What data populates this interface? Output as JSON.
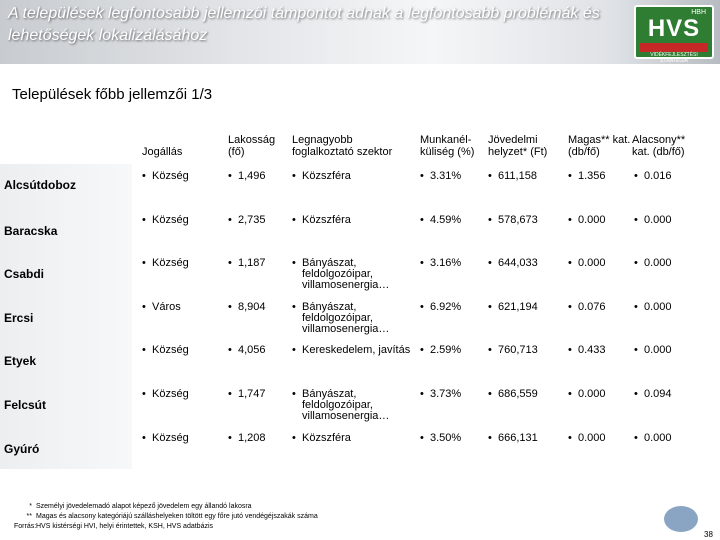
{
  "header": {
    "title": "A települések legfontosabb jellemzői támpontot adnak a legfontosabb problémák és lehetőségek lokalizálásához"
  },
  "logo": {
    "top": "HBH",
    "main": "HVS",
    "sub": "VIDÉKFEJLESZTÉSI STRATÉGIA"
  },
  "subtitle": "Települések főbb jellemzői 1/3",
  "columns": {
    "jogallas": "Jogállás",
    "lakossag": "Lakosság (fő)",
    "legnagyobb": "Legnagyobb foglalkoztató szektor",
    "munkanelkuliseg": "Munkanél-küliség (%)",
    "jovedelmi": "Jövedelmi helyzet* (Ft)",
    "magas": "Magas** kat. (db/fő)",
    "alacsony": "Alacsony** kat. (db/fő)"
  },
  "rows": [
    {
      "name": "Alcsútdoboz",
      "jogallas": "Község",
      "lakossag": "1,496",
      "szektor": "Közszféra",
      "munka": "3.31%",
      "jov": "611,158",
      "magas": "1.356",
      "alacsony": "0.016"
    },
    {
      "name": "Baracska",
      "jogallas": "Község",
      "lakossag": "2,735",
      "szektor": "Közszféra",
      "munka": "4.59%",
      "jov": "578,673",
      "magas": "0.000",
      "alacsony": "0.000"
    },
    {
      "name": "Csabdi",
      "jogallas": "Község",
      "lakossag": "1,187",
      "szektor": "Bányászat, feldolgozóipar, villamosenergia…",
      "munka": "3.16%",
      "jov": "644,033",
      "magas": "0.000",
      "alacsony": "0.000"
    },
    {
      "name": "Ercsi",
      "jogallas": "Város",
      "lakossag": "8,904",
      "szektor": "Bányászat, feldolgozóipar, villamosenergia…",
      "munka": "6.92%",
      "jov": "621,194",
      "magas": "0.076",
      "alacsony": "0.000"
    },
    {
      "name": "Etyek",
      "jogallas": "Község",
      "lakossag": "4,056",
      "szektor": "Kereskedelem, javítás",
      "munka": "2.59%",
      "jov": "760,713",
      "magas": "0.433",
      "alacsony": "0.000"
    },
    {
      "name": "Felcsút",
      "jogallas": "Község",
      "lakossag": "1,747",
      "szektor": "Bányászat, feldolgozóipar, villamosenergia…",
      "munka": "3.73%",
      "jov": "686,559",
      "magas": "0.000",
      "alacsony": "0.094"
    },
    {
      "name": "Gyúró",
      "jogallas": "Község",
      "lakossag": "1,208",
      "szektor": "Közszféra",
      "munka": "3.50%",
      "jov": "666,131",
      "magas": "0.000",
      "alacsony": "0.000"
    }
  ],
  "bullet": "•",
  "notes": [
    {
      "label": "*",
      "text": "Személyi jövedelemadó alapot képező jövedelem egy állandó lakosra"
    },
    {
      "label": "**",
      "text": "Magas és alacsony kategóriájú szálláshelyeken töltött egy főre jutó vendégéjszakák száma"
    },
    {
      "label": "Forrás:",
      "text": "HVS kistérségi HVI, helyi érintettek, KSH, HVS adatbázis"
    }
  ],
  "page_number": "38"
}
